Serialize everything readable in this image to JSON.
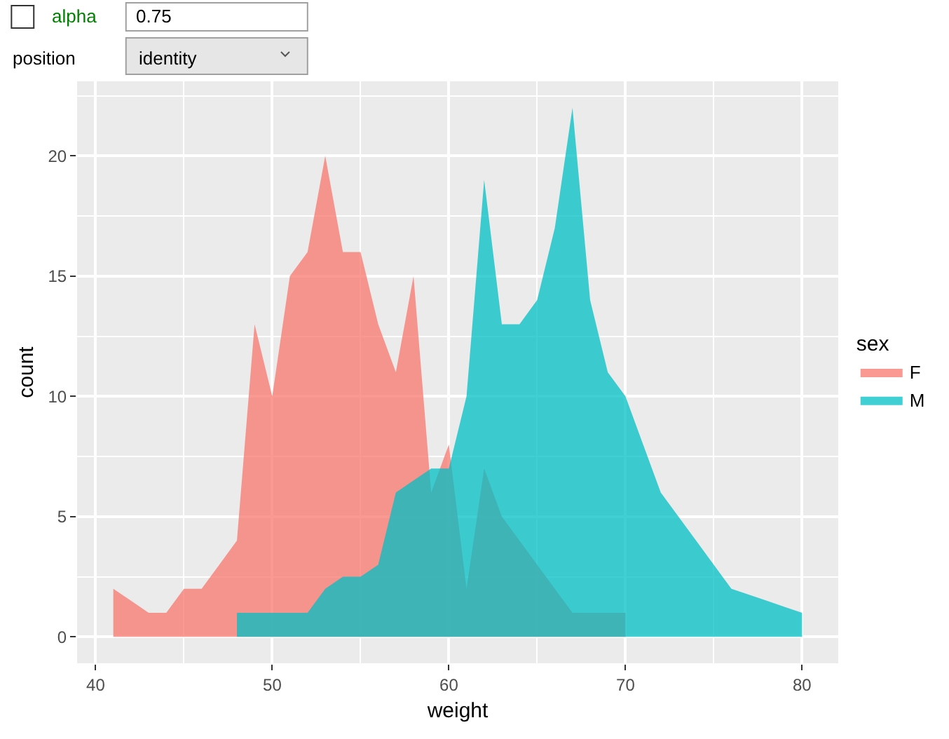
{
  "chart_data": {
    "type": "area",
    "xlabel": "weight",
    "ylabel": "count",
    "legend_title": "sex",
    "annotations": [
      "alpha",
      "0.75",
      "position",
      "identity"
    ],
    "series": [
      {
        "name": "F",
        "color": "#f8766d",
        "x": [
          41,
          42,
          43,
          44,
          45,
          46,
          47,
          48,
          49,
          50,
          51,
          52,
          53,
          54,
          55,
          56,
          57,
          58,
          59,
          60,
          61,
          62,
          63,
          64,
          65,
          66,
          67,
          68,
          69,
          70
        ],
        "values": [
          2,
          1.5,
          1,
          1,
          2,
          2,
          3,
          4,
          13,
          10,
          15,
          16,
          20,
          16,
          16,
          13,
          11,
          15,
          6,
          8,
          2,
          7,
          5,
          4,
          3,
          2,
          1,
          1,
          1,
          1
        ]
      },
      {
        "name": "M",
        "color": "#00bfc4",
        "x": [
          48,
          49,
          50,
          51,
          52,
          53,
          54,
          55,
          56,
          57,
          58,
          59,
          60,
          61,
          62,
          63,
          64,
          65,
          66,
          67,
          68,
          69,
          70,
          71,
          72,
          73,
          74,
          75,
          76,
          77,
          78,
          79,
          80
        ],
        "values": [
          1,
          1,
          1,
          1,
          1,
          2,
          2.5,
          2.5,
          3,
          6,
          6.5,
          7,
          7,
          10,
          19,
          13,
          13,
          14,
          17,
          22,
          14,
          11,
          10,
          8,
          6,
          5,
          4,
          3,
          2,
          1.75,
          1.5,
          1.25,
          1
        ]
      }
    ],
    "xlim": [
      38.95,
      82.05
    ],
    "ylim": [
      -1.1,
      23.1
    ],
    "xticks": [
      40,
      50,
      60,
      70,
      80
    ],
    "yticks": [
      0,
      5,
      10,
      15,
      20
    ],
    "grid": true,
    "legend": "right"
  }
}
